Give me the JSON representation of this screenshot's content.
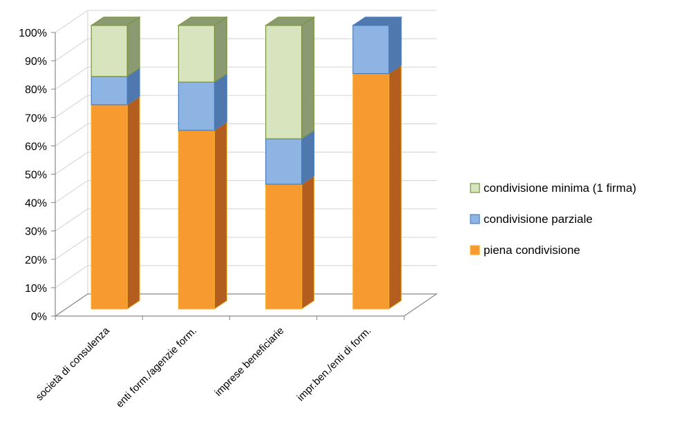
{
  "chart_data": {
    "type": "bar",
    "stacked": true,
    "percent_stacked": true,
    "three_d": true,
    "categories": [
      "società di consulenza",
      "enti form./agenzie form.",
      "imprese beneficiarie",
      "impr.ben./enti di form."
    ],
    "series": [
      {
        "name": "piena condivisione",
        "values": [
          72,
          63,
          44,
          83
        ],
        "color": "#F79A30",
        "side_color": "#B35E1E",
        "stroke": "#F5B030"
      },
      {
        "name": "condivisione parziale",
        "values": [
          10,
          17,
          16,
          17
        ],
        "color": "#8EB4E3",
        "side_color": "#4F79AE",
        "stroke": "#4A7EBB"
      },
      {
        "name": "condivisione minima (1 firma)",
        "values": [
          18,
          20,
          40,
          0
        ],
        "color": "#D7E4BD",
        "side_color": "#8B9A70",
        "stroke": "#77933C"
      }
    ],
    "y_ticks": [
      "0%",
      "10%",
      "20%",
      "30%",
      "40%",
      "50%",
      "60%",
      "70%",
      "80%",
      "90%",
      "100%"
    ],
    "ylim": [
      0,
      100
    ],
    "grid": true,
    "legend_position": "right"
  }
}
